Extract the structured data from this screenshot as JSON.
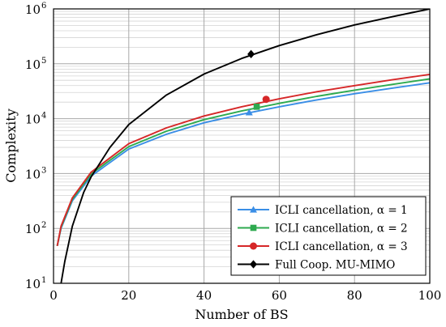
{
  "chart_data": {
    "type": "line",
    "xlabel": "Number of BS",
    "ylabel": "Complexity",
    "xlim": [
      0,
      100
    ],
    "ylim": [
      10,
      1000000
    ],
    "yscale": "log",
    "grid": true,
    "legend_position": "bottom-right",
    "x_ticks": [
      "0",
      "20",
      "40",
      "60",
      "80",
      "100"
    ],
    "y_ticks": [
      {
        "base": "10",
        "exp": "1"
      },
      {
        "base": "10",
        "exp": "2"
      },
      {
        "base": "10",
        "exp": "3"
      },
      {
        "base": "10",
        "exp": "4"
      },
      {
        "base": "10",
        "exp": "5"
      },
      {
        "base": "10",
        "exp": "6"
      }
    ],
    "series": [
      {
        "name": "ICLI cancellation, α = 1",
        "color": "#3a8ee6",
        "marker": "triangle",
        "marker_at": [
          52,
          13000
        ],
        "x": [
          1,
          2,
          5,
          10,
          20,
          30,
          40,
          50,
          60,
          70,
          80,
          90,
          100
        ],
        "values": [
          48,
          100,
          320,
          900,
          2800,
          5200,
          8400,
          12000,
          16500,
          22000,
          28500,
          36000,
          45000
        ]
      },
      {
        "name": "ICLI cancellation, α = 2",
        "color": "#2eaa4f",
        "marker": "square",
        "marker_at": [
          54,
          16500
        ],
        "x": [
          1,
          2,
          5,
          10,
          20,
          30,
          40,
          50,
          60,
          70,
          80,
          90,
          100
        ],
        "values": [
          48,
          105,
          340,
          980,
          3100,
          5900,
          9600,
          13800,
          19000,
          25500,
          33000,
          42000,
          53000
        ]
      },
      {
        "name": "ICLI cancellation, α = 3",
        "color": "#d62728",
        "marker": "circle",
        "marker_at": [
          56.5,
          22500
        ],
        "x": [
          1,
          2,
          5,
          10,
          20,
          30,
          40,
          50,
          60,
          70,
          80,
          90,
          100
        ],
        "values": [
          48,
          110,
          360,
          1060,
          3500,
          6800,
          11200,
          16500,
          23000,
          31000,
          40000,
          51000,
          64000
        ]
      },
      {
        "name": "Full Coop. MU-MIMO",
        "color": "#000000",
        "marker": "diamond",
        "marker_at": [
          52.5,
          150000
        ],
        "x": [
          2,
          3,
          5,
          8,
          10,
          15,
          20,
          30,
          40,
          50,
          60,
          70,
          80,
          90,
          100
        ],
        "values": [
          10,
          25,
          110,
          450,
          870,
          3000,
          7800,
          27000,
          65000,
          125000,
          215000,
          340000,
          510000,
          720000,
          1000000
        ]
      }
    ]
  }
}
